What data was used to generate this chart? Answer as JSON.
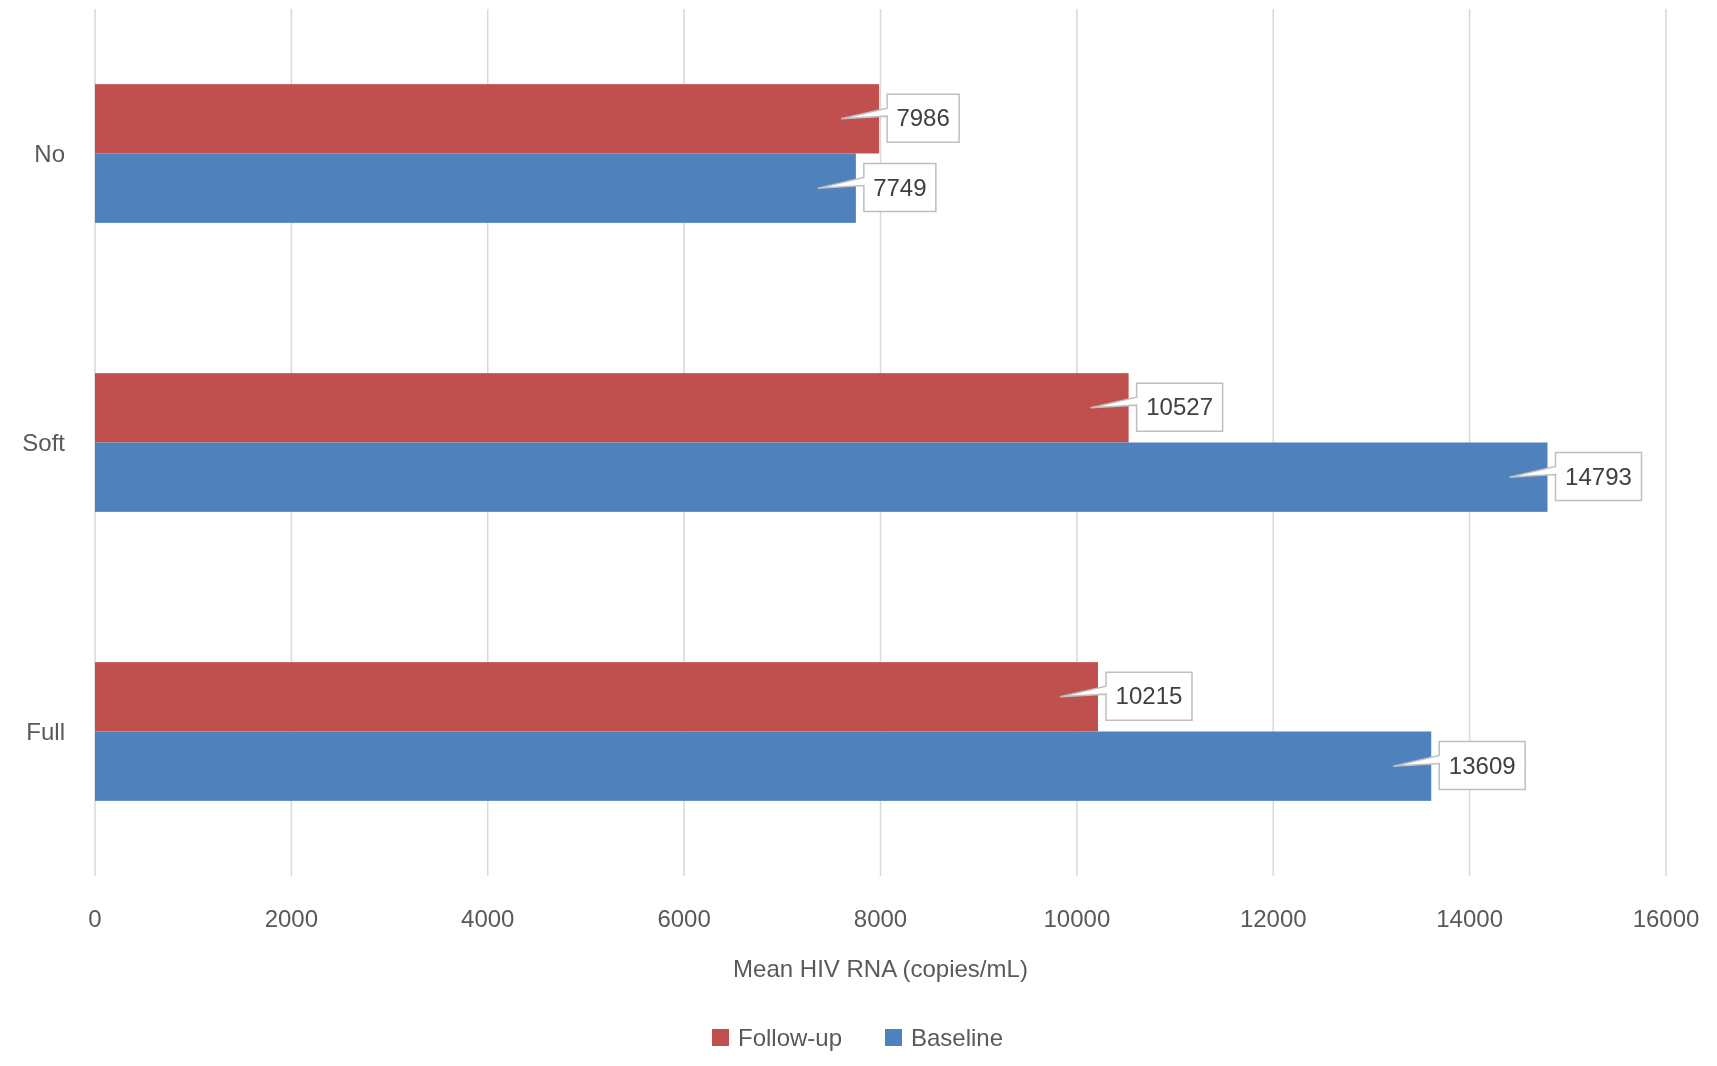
{
  "chart_data": {
    "type": "bar",
    "orientation": "horizontal",
    "xlabel": "Mean HIV RNA (copies/mL)",
    "categories": [
      "No",
      "Soft",
      "Full"
    ],
    "series": [
      {
        "name": "Follow-up",
        "color": "#c0504d",
        "values": [
          7986,
          10527,
          10215
        ]
      },
      {
        "name": "Baseline",
        "color": "#4f81bd",
        "values": [
          7749,
          14793,
          13609
        ]
      }
    ],
    "xlim": [
      0,
      16000
    ],
    "xticks": [
      0,
      2000,
      4000,
      6000,
      8000,
      10000,
      12000,
      14000,
      16000
    ],
    "grid": "x",
    "legend": "bottom",
    "data_labels": true
  }
}
